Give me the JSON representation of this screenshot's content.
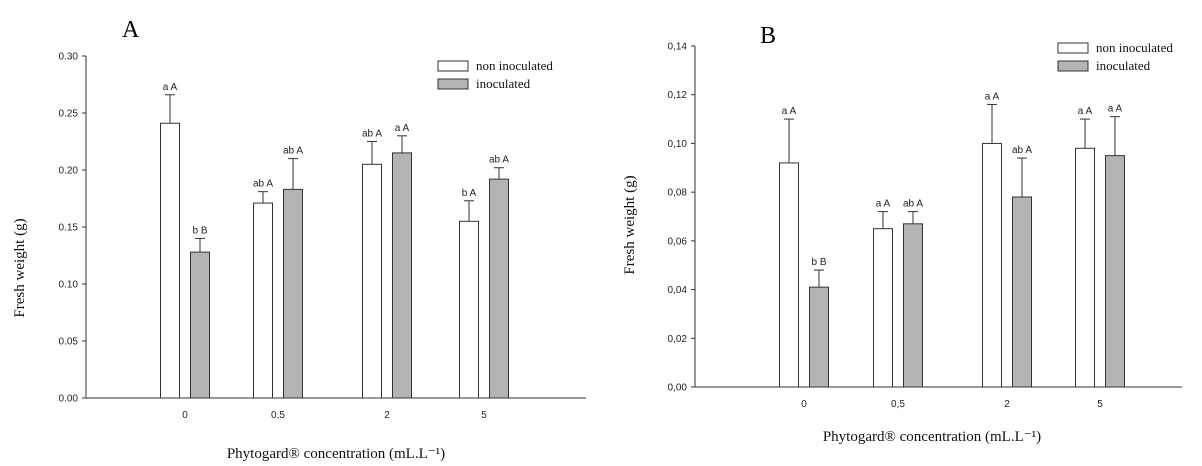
{
  "chart_data": [
    {
      "type": "bar",
      "panel": "A",
      "categories": [
        "0",
        "0,5",
        "2",
        "5"
      ],
      "series": [
        {
          "name": "non inoculated",
          "values": [
            0.241,
            0.171,
            0.205,
            0.155
          ],
          "errors": [
            0.025,
            0.01,
            0.02,
            0.018
          ],
          "labels": [
            "a A",
            "ab A",
            "ab A",
            "b A"
          ],
          "color": "#ffffff"
        },
        {
          "name": "inoculated",
          "values": [
            0.128,
            0.183,
            0.215,
            0.192
          ],
          "errors": [
            0.012,
            0.027,
            0.015,
            0.01
          ],
          "labels": [
            "b B",
            "ab A",
            "a A",
            "ab A"
          ],
          "color": "#b4b4b4"
        }
      ],
      "yticks": [
        "0.00",
        "0.05",
        "0.10",
        "0.15",
        "0.20",
        "0.25",
        "0.30"
      ],
      "ylim": [
        0,
        0.3
      ],
      "xlabel": "Phytogard® concentration (mL.L⁻¹)",
      "ylabel": "Fresh weight  (g)",
      "legend": "top-right",
      "grid": false
    },
    {
      "type": "bar",
      "panel": "B",
      "categories": [
        "0",
        "0,5",
        "2",
        "5"
      ],
      "series": [
        {
          "name": "non inoculated",
          "values": [
            0.092,
            0.065,
            0.1,
            0.098
          ],
          "errors": [
            0.018,
            0.007,
            0.016,
            0.012
          ],
          "labels": [
            "a A",
            "a A",
            "a A",
            "a A"
          ],
          "color": "#ffffff"
        },
        {
          "name": "inoculated",
          "values": [
            0.041,
            0.067,
            0.078,
            0.095
          ],
          "errors": [
            0.007,
            0.005,
            0.016,
            0.016
          ],
          "labels": [
            "b B",
            "ab A",
            "ab A",
            "a A"
          ],
          "color": "#b4b4b4"
        }
      ],
      "yticks": [
        "0,00",
        "0,02",
        "0,04",
        "0,06",
        "0,08",
        "0,10",
        "0,12",
        "0,14"
      ],
      "ylim": [
        0,
        0.14
      ],
      "xlabel": "Phytogard® concentration (mL.L⁻¹)",
      "ylabel": "Fresh weight  (g)",
      "legend": "top-right",
      "grid": false
    }
  ]
}
